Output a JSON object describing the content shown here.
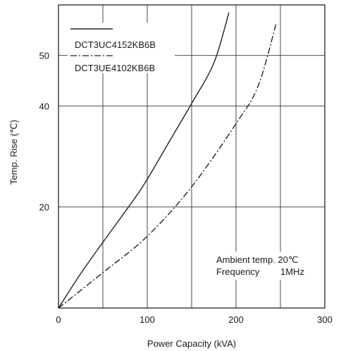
{
  "chart_data": {
    "type": "line",
    "xlabel": "Power Capacity (kVA)",
    "ylabel": "Temp. Rise (℃)",
    "xlim": [
      0,
      300
    ],
    "ylim": [
      0,
      60
    ],
    "x_ticks": [
      0,
      100,
      200,
      300
    ],
    "y_ticks": [
      20,
      40,
      50
    ],
    "x_tick_labels": [
      "0",
      "100",
      "200",
      "300"
    ],
    "y_tick_labels": [
      "20",
      "40",
      "50"
    ],
    "x_gridlines": [
      50,
      100,
      150,
      200,
      250
    ],
    "y_gridlines": [
      20,
      40,
      50
    ],
    "grid": true,
    "legend_position": "top-left",
    "series": [
      {
        "name": "DCT3UC4152KB6B",
        "line_style": "solid",
        "x": [
          0,
          25,
          50,
          85,
          100,
          125,
          150,
          175,
          192
        ],
        "y": [
          0,
          6.8,
          13,
          21.5,
          25.5,
          33,
          40.5,
          48.5,
          58.5
        ]
      },
      {
        "name": "DCT3UE4102KB6B",
        "line_style": "dash-dot",
        "x": [
          0,
          50,
          100,
          150,
          200,
          225,
          245
        ],
        "y": [
          0,
          7,
          14.2,
          24,
          36.5,
          44,
          56.2
        ]
      }
    ],
    "annotations": [
      "Ambient temp. 20℃",
      "Frequency",
      "1MHz"
    ]
  }
}
